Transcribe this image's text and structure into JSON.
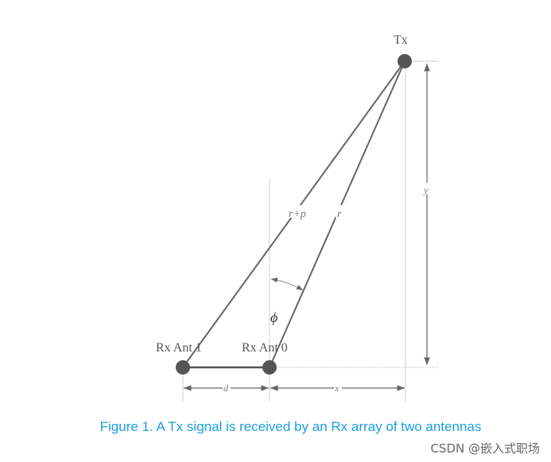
{
  "diagram": {
    "tx_label": "Tx",
    "rx1_label": "Rx Ant 1",
    "rx0_label": "Rx Ant 0",
    "r_plus_p_label": "r+p",
    "r_label": "r",
    "phi_label": "ϕ",
    "y_label": "y",
    "d_label": "d",
    "x_label": "x",
    "line_color": "#666666"
  },
  "caption": "Figure 1. A Tx signal is received by an Rx array of two antennas",
  "watermark": "CSDN @嵌入式职场"
}
